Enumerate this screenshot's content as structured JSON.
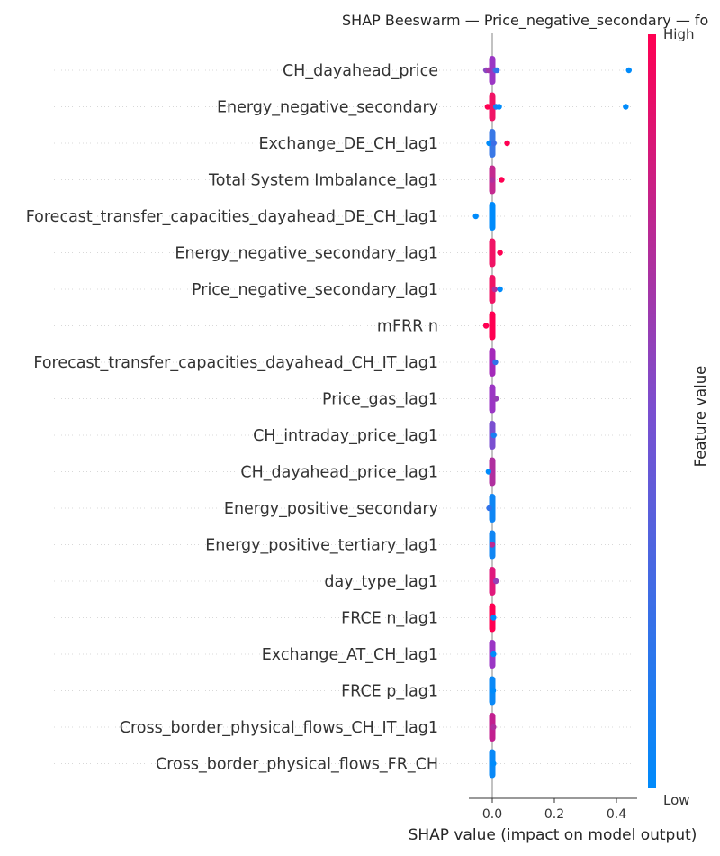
{
  "chart_data": {
    "type": "scatter",
    "subtype": "shap-beeswarm",
    "title": "SHAP Beeswarm — Price_negative_secondary — fo",
    "xlabel": "SHAP value (impact on model output)",
    "xlim": [
      -0.075,
      0.465
    ],
    "xticks": [
      0.0,
      0.2,
      0.4
    ],
    "xtick_labels": [
      "0.0",
      "0.2",
      "0.4"
    ],
    "colorbar": {
      "label": "Feature value",
      "high_label": "High",
      "low_label": "Low",
      "low_color": "#008bfb",
      "high_color": "#ff0052"
    },
    "features": [
      {
        "name": "CH_dayahead_price",
        "core_color": "#9b36c4",
        "points": [
          {
            "x": -0.02,
            "c": 0.55
          },
          {
            "x": -0.012,
            "c": 0.65
          },
          {
            "x": 0.01,
            "c": 0.35
          },
          {
            "x": 0.015,
            "c": 0.2
          },
          {
            "x": 0.44,
            "c": 0.0
          }
        ]
      },
      {
        "name": "Energy_negative_secondary",
        "core_color": "#f01465",
        "points": [
          {
            "x": -0.015,
            "c": 1.0
          },
          {
            "x": 0.012,
            "c": 0.1
          },
          {
            "x": 0.022,
            "c": 0.0
          },
          {
            "x": 0.43,
            "c": 0.0
          }
        ]
      },
      {
        "name": "Exchange_DE_CH_lag1",
        "core_color": "#3a78e6",
        "points": [
          {
            "x": -0.01,
            "c": 0.0
          },
          {
            "x": 0.005,
            "c": 0.25
          },
          {
            "x": 0.048,
            "c": 1.0
          }
        ]
      },
      {
        "name": "Total System Imbalance_lag1",
        "core_color": "#c42a90",
        "points": [
          {
            "x": 0.0,
            "c": 0.7
          },
          {
            "x": 0.03,
            "c": 1.0
          }
        ]
      },
      {
        "name": "Forecast_transfer_capacities_dayahead_DE_CH_lag1",
        "core_color": "#008bfb",
        "points": [
          {
            "x": -0.053,
            "c": 0.0
          }
        ]
      },
      {
        "name": "Energy_negative_secondary_lag1",
        "core_color": "#f01465",
        "points": [
          {
            "x": 0.025,
            "c": 1.0
          }
        ]
      },
      {
        "name": "Price_negative_secondary_lag1",
        "core_color": "#f01465",
        "points": [
          {
            "x": 0.008,
            "c": 0.7
          },
          {
            "x": 0.025,
            "c": 0.0
          }
        ]
      },
      {
        "name": "mFRR n",
        "core_color": "#ff0052",
        "points": [
          {
            "x": -0.02,
            "c": 1.0
          }
        ]
      },
      {
        "name": "Forecast_transfer_capacities_dayahead_CH_IT_lag1",
        "core_color": "#a42aba",
        "points": [
          {
            "x": 0.01,
            "c": 0.2
          }
        ]
      },
      {
        "name": "Price_gas_lag1",
        "core_color": "#9b36c4",
        "points": [
          {
            "x": 0.012,
            "c": 0.6
          }
        ]
      },
      {
        "name": "CH_intraday_price_lag1",
        "core_color": "#7a4fd0",
        "points": [
          {
            "x": 0.005,
            "c": 0.1
          }
        ]
      },
      {
        "name": "CH_dayahead_price_lag1",
        "core_color": "#b0309f",
        "points": [
          {
            "x": -0.012,
            "c": 0.0
          }
        ]
      },
      {
        "name": "Energy_positive_secondary",
        "core_color": "#0f86f4",
        "points": [
          {
            "x": -0.01,
            "c": 0.2
          }
        ]
      },
      {
        "name": "Energy_positive_tertiary_lag1",
        "core_color": "#1186f3",
        "points": [
          {
            "x": 0.0,
            "c": 0.75
          }
        ]
      },
      {
        "name": "day_type_lag1",
        "core_color": "#e0197c",
        "points": [
          {
            "x": 0.012,
            "c": 0.6
          }
        ]
      },
      {
        "name": "FRCE n_lag1",
        "core_color": "#ff0052",
        "points": [
          {
            "x": 0.004,
            "c": 0.0
          }
        ]
      },
      {
        "name": "Exchange_AT_CH_lag1",
        "core_color": "#9b36c4",
        "points": [
          {
            "x": 0.004,
            "c": 0.0
          }
        ]
      },
      {
        "name": "FRCE p_lag1",
        "core_color": "#0a89f7",
        "points": [
          {
            "x": 0.003,
            "c": 0.0
          }
        ]
      },
      {
        "name": "Cross_border_physical_flows_CH_IT_lag1",
        "core_color": "#c21f8f",
        "points": [
          {
            "x": 0.004,
            "c": 0.7
          }
        ]
      },
      {
        "name": "Cross_border_physical_flows_FR_CH",
        "core_color": "#0a89f7",
        "points": [
          {
            "x": 0.004,
            "c": 0.0
          }
        ]
      }
    ]
  }
}
